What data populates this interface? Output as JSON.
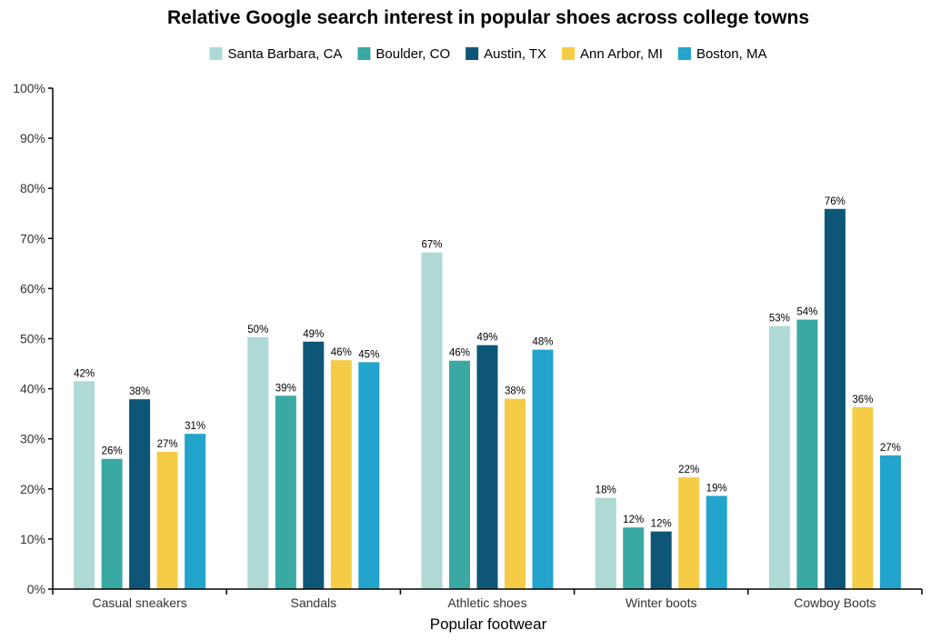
{
  "chart_data": {
    "type": "bar",
    "title": "Relative Google search interest in popular shoes across college towns",
    "xlabel": "Popular footwear",
    "ylabel": "",
    "ylim": [
      0,
      100
    ],
    "yticks": [
      "0%",
      "10%",
      "20%",
      "30%",
      "40%",
      "50%",
      "60%",
      "70%",
      "80%",
      "90%",
      "100%"
    ],
    "grid": false,
    "legend_position": "top",
    "categories": [
      "Casual sneakers",
      "Sandals",
      "Athletic shoes",
      "Winter boots",
      "Cowboy Boots"
    ],
    "series": [
      {
        "name": "Santa Barbara, CA",
        "color": "#aed9d4",
        "values": [
          41.5,
          50.3,
          67.2,
          18.2,
          52.5
        ],
        "labels": [
          "42%",
          "50%",
          "67%",
          "18%",
          "53%"
        ]
      },
      {
        "name": "Boulder, CO",
        "color": "#3aa9a3",
        "values": [
          26.0,
          38.6,
          45.6,
          12.3,
          53.8
        ],
        "labels": [
          "26%",
          "39%",
          "46%",
          "12%",
          "54%"
        ]
      },
      {
        "name": "Austin, TX",
        "color": "#0e5677",
        "values": [
          37.9,
          49.4,
          48.7,
          11.5,
          75.9
        ],
        "labels": [
          "38%",
          "49%",
          "49%",
          "12%",
          "76%"
        ]
      },
      {
        "name": "Ann Arbor, MI",
        "color": "#f5cc45",
        "values": [
          27.4,
          45.7,
          38.0,
          22.3,
          36.3
        ],
        "labels": [
          "27%",
          "46%",
          "38%",
          "22%",
          "36%"
        ]
      },
      {
        "name": "Boston, MA",
        "color": "#22a4cc",
        "values": [
          31.0,
          45.3,
          47.8,
          18.6,
          26.7
        ],
        "labels": [
          "31%",
          "45%",
          "48%",
          "19%",
          "27%"
        ]
      }
    ]
  }
}
